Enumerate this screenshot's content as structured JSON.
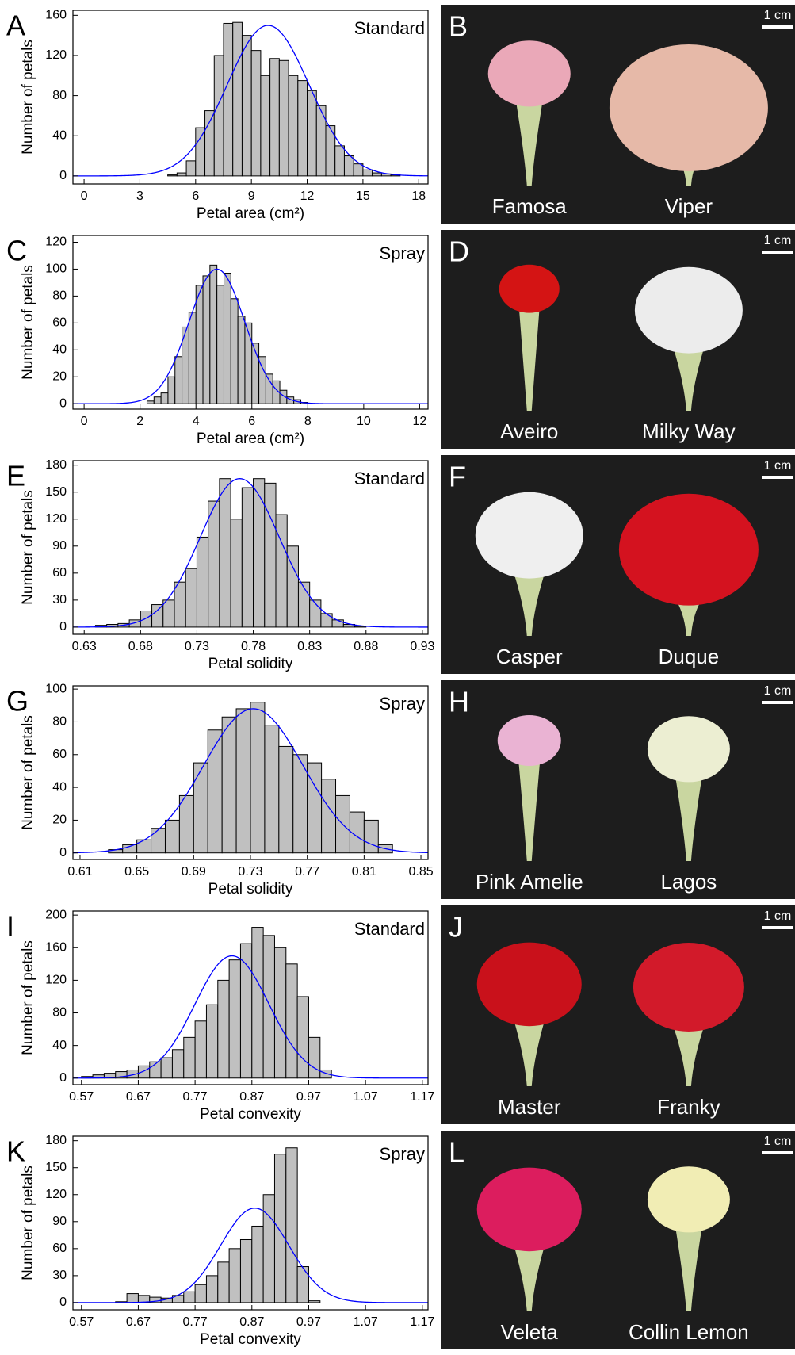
{
  "chart_data": [
    {
      "type": "histogram",
      "panel": "A",
      "annotation": "Standard",
      "x_label": "Petal area (cm²)",
      "y_label": "Number of petals",
      "color": "#c0c0c0",
      "bins": [
        4.5,
        5,
        5.5,
        6,
        6.5,
        7,
        7.5,
        8,
        8.5,
        9,
        9.5,
        10,
        10.5,
        11,
        11.5,
        12,
        12.5,
        13,
        13.5,
        14,
        14.5,
        15,
        15.5,
        16,
        16.5,
        17
      ],
      "values": [
        1,
        3,
        15,
        48,
        65,
        120,
        152,
        153,
        140,
        125,
        100,
        117,
        115,
        100,
        95,
        85,
        70,
        50,
        30,
        20,
        12,
        6,
        3,
        2,
        1
      ],
      "fit": {
        "mean": 9.9,
        "sd": 2.2,
        "peak": 150,
        "color": "#0000ff"
      },
      "xlim": [
        -0.6,
        18.5
      ],
      "ylim": [
        -8,
        165
      ],
      "xticks": [
        0,
        3,
        6,
        9,
        12,
        15,
        18
      ],
      "yticks": [
        0,
        40,
        80,
        120,
        160
      ]
    },
    {
      "type": "histogram",
      "panel": "C",
      "annotation": "Spray",
      "x_label": "Petal area (cm²)",
      "y_label": "Number of petals",
      "color": "#c0c0c0",
      "bins": [
        2.25,
        2.5,
        2.75,
        3,
        3.25,
        3.5,
        3.75,
        4,
        4.25,
        4.5,
        4.75,
        5,
        5.25,
        5.5,
        5.75,
        6,
        6.25,
        6.5,
        6.75,
        7,
        7.25,
        7.5,
        7.75,
        8
      ],
      "values": [
        2,
        5,
        8,
        20,
        35,
        57,
        68,
        88,
        95,
        103,
        88,
        97,
        78,
        65,
        60,
        45,
        35,
        22,
        17,
        10,
        5,
        3,
        1
      ],
      "fit": {
        "mean": 4.75,
        "sd": 1.0,
        "peak": 100,
        "color": "#0000ff"
      },
      "xlim": [
        -0.4,
        12.3
      ],
      "ylim": [
        -4,
        125
      ],
      "xticks": [
        0,
        2,
        4,
        6,
        8,
        10,
        12
      ],
      "yticks": [
        0,
        20,
        40,
        60,
        80,
        100,
        120
      ]
    },
    {
      "type": "histogram",
      "panel": "E",
      "annotation": "Standard",
      "x_label": "Petal solidity",
      "y_label": "Number of petals",
      "color": "#c0c0c0",
      "bins": [
        0.64,
        0.65,
        0.66,
        0.67,
        0.68,
        0.69,
        0.7,
        0.71,
        0.72,
        0.73,
        0.74,
        0.75,
        0.76,
        0.77,
        0.78,
        0.79,
        0.8,
        0.81,
        0.82,
        0.83,
        0.84,
        0.85,
        0.86,
        0.87,
        0.88
      ],
      "values": [
        2,
        3,
        4,
        8,
        18,
        25,
        30,
        50,
        65,
        100,
        140,
        165,
        120,
        155,
        165,
        160,
        125,
        90,
        50,
        30,
        15,
        8,
        3,
        1
      ],
      "fit": {
        "mean": 0.768,
        "sd": 0.035,
        "peak": 165,
        "color": "#0000ff"
      },
      "xlim": [
        0.62,
        0.935
      ],
      "ylim": [
        -8,
        185
      ],
      "xticks": [
        0.63,
        0.68,
        0.73,
        0.78,
        0.83,
        0.88,
        0.93
      ],
      "yticks": [
        0,
        30,
        60,
        90,
        120,
        150,
        180
      ]
    },
    {
      "type": "histogram",
      "panel": "G",
      "annotation": "Spray",
      "x_label": "Petal solidity",
      "y_label": "Number of petals",
      "color": "#c0c0c0",
      "bins": [
        0.63,
        0.64,
        0.65,
        0.66,
        0.67,
        0.68,
        0.69,
        0.7,
        0.71,
        0.72,
        0.73,
        0.74,
        0.75,
        0.76,
        0.77,
        0.78,
        0.79,
        0.8,
        0.81,
        0.82,
        0.83
      ],
      "values": [
        2,
        5,
        8,
        15,
        20,
        35,
        55,
        75,
        83,
        88,
        92,
        78,
        65,
        60,
        55,
        45,
        35,
        25,
        20,
        5
      ],
      "fit": {
        "mean": 0.732,
        "sd": 0.035,
        "peak": 88,
        "color": "#0000ff"
      },
      "xlim": [
        0.605,
        0.855
      ],
      "ylim": [
        -4,
        102
      ],
      "xticks": [
        0.61,
        0.65,
        0.69,
        0.73,
        0.77,
        0.81,
        0.85
      ],
      "yticks": [
        0,
        20,
        40,
        60,
        80,
        100
      ]
    },
    {
      "type": "histogram",
      "panel": "I",
      "annotation": "Standard",
      "x_label": "Petal convexity",
      "y_label": "Number of petals",
      "color": "#c0c0c0",
      "bins": [
        0.57,
        0.59,
        0.61,
        0.63,
        0.65,
        0.67,
        0.69,
        0.71,
        0.73,
        0.75,
        0.77,
        0.79,
        0.81,
        0.83,
        0.85,
        0.87,
        0.89,
        0.91,
        0.93,
        0.95,
        0.97,
        0.99,
        1.01
      ],
      "values": [
        2,
        4,
        6,
        8,
        10,
        15,
        20,
        25,
        35,
        50,
        70,
        90,
        120,
        145,
        165,
        185,
        175,
        160,
        140,
        100,
        50,
        10
      ],
      "fit": {
        "mean": 0.835,
        "sd": 0.065,
        "peak": 150,
        "color": "#0000ff"
      },
      "xlim": [
        0.555,
        1.18
      ],
      "ylim": [
        -8,
        205
      ],
      "xticks": [
        0.57,
        0.67,
        0.77,
        0.87,
        0.97,
        1.07,
        1.17
      ],
      "yticks": [
        0,
        40,
        80,
        120,
        160,
        200
      ]
    },
    {
      "type": "histogram",
      "panel": "K",
      "annotation": "Spray",
      "x_label": "Petal convexity",
      "y_label": "Number of petals",
      "color": "#c0c0c0",
      "bins": [
        0.63,
        0.65,
        0.67,
        0.69,
        0.71,
        0.73,
        0.75,
        0.77,
        0.79,
        0.81,
        0.83,
        0.85,
        0.87,
        0.89,
        0.91,
        0.93,
        0.95,
        0.97,
        0.99
      ],
      "values": [
        1,
        10,
        8,
        6,
        5,
        8,
        12,
        20,
        30,
        45,
        60,
        70,
        85,
        120,
        165,
        172,
        40,
        2
      ],
      "fit": {
        "mean": 0.875,
        "sd": 0.06,
        "peak": 105,
        "color": "#0000ff"
      },
      "xlim": [
        0.555,
        1.18
      ],
      "ylim": [
        -8,
        185
      ],
      "xticks": [
        0.57,
        0.67,
        0.77,
        0.87,
        0.97,
        1.07,
        1.17
      ],
      "yticks": [
        0,
        30,
        60,
        90,
        120,
        150,
        180
      ]
    }
  ],
  "photo_panels": [
    {
      "letter": "B",
      "scale_label": "1 cm",
      "labels": [
        "Famosa",
        "Viper"
      ]
    },
    {
      "letter": "D",
      "scale_label": "1 cm",
      "labels": [
        "Aveiro",
        "Milky Way"
      ]
    },
    {
      "letter": "F",
      "scale_label": "1 cm",
      "labels": [
        "Casper",
        "Duque"
      ]
    },
    {
      "letter": "H",
      "scale_label": "1 cm",
      "labels": [
        "Pink Amelie",
        "Lagos"
      ]
    },
    {
      "letter": "J",
      "scale_label": "1 cm",
      "labels": [
        "Master",
        "Franky"
      ]
    },
    {
      "letter": "L",
      "scale_label": "1 cm",
      "labels": [
        "Veleta",
        "Collin Lemon"
      ]
    }
  ]
}
